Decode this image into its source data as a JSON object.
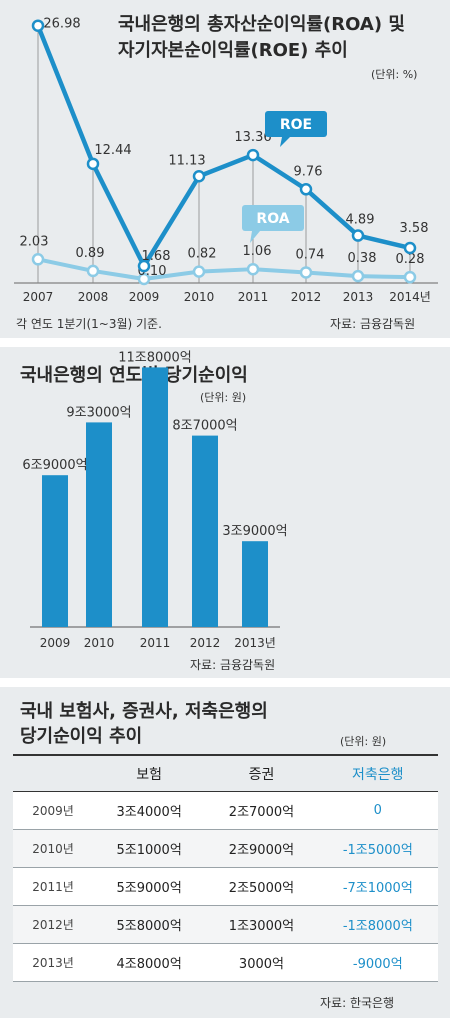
{
  "panel1": {
    "title_line1": "국내은행의 총자산순이익률(ROA) 및",
    "title_line2": "자기자본순이익률(ROE) 추이",
    "unit": "(단위: %)",
    "note": "각 연도 1분기(1~3월) 기준.",
    "source": "자료: 금융감독원"
  },
  "panel2": {
    "title": "국내은행의 연도별 당기순이익",
    "unit": "(단위: 원)",
    "source": "자료: 금융감독원"
  },
  "panel3": {
    "title_line1": "국내 보험사, 증권사, 저축은행의",
    "title_line2": "당기순이익 추이",
    "unit": "(단위: 원)",
    "source": "자료: 한국은행"
  },
  "colors": {
    "roe": "#1d8fc9",
    "roa": "#8ccbe6",
    "bar": "#1d8fc9",
    "bank_text": "#1d8fc9"
  },
  "chart_data": [
    {
      "type": "line",
      "x": [
        "2007",
        "2008",
        "2009",
        "2010",
        "2011",
        "2012",
        "2013",
        "2014년"
      ],
      "series": [
        {
          "name": "ROE",
          "values": [
            26.98,
            12.44,
            1.68,
            11.13,
            13.36,
            9.76,
            4.89,
            3.58
          ],
          "labels": [
            "26.98",
            "12.44",
            "1.68",
            "11.13",
            "13.36",
            "9.76",
            "4.89",
            "3.58"
          ]
        },
        {
          "name": "ROA",
          "values": [
            2.03,
            0.89,
            0.1,
            0.82,
            1.06,
            0.74,
            0.38,
            0.28
          ],
          "labels": [
            "2.03",
            "0.89",
            "0.10",
            "0.82",
            "1.06",
            "0.74",
            "0.38",
            "0.28"
          ]
        }
      ]
    },
    {
      "type": "bar",
      "categories": [
        "2009",
        "2010",
        "2011",
        "2012",
        "2013년"
      ],
      "values": [
        6.9,
        9.3,
        11.8,
        8.7,
        3.9
      ],
      "labels": [
        "6조9000억",
        "9조3000억",
        "11조8000억",
        "8조7000억",
        "3조9000억"
      ]
    },
    {
      "type": "table",
      "columns": [
        "",
        "보험",
        "증권",
        "저축은행"
      ],
      "rows": [
        [
          "2009년",
          "3조4000억",
          "2조7000억",
          "0"
        ],
        [
          "2010년",
          "5조1000억",
          "2조9000억",
          "-1조5000억"
        ],
        [
          "2011년",
          "5조9000억",
          "2조5000억",
          "-7조1000억"
        ],
        [
          "2012년",
          "5조8000억",
          "1조3000억",
          "-1조8000억"
        ],
        [
          "2013년",
          "4조8000억",
          "3000억",
          "-9000억"
        ]
      ]
    }
  ]
}
